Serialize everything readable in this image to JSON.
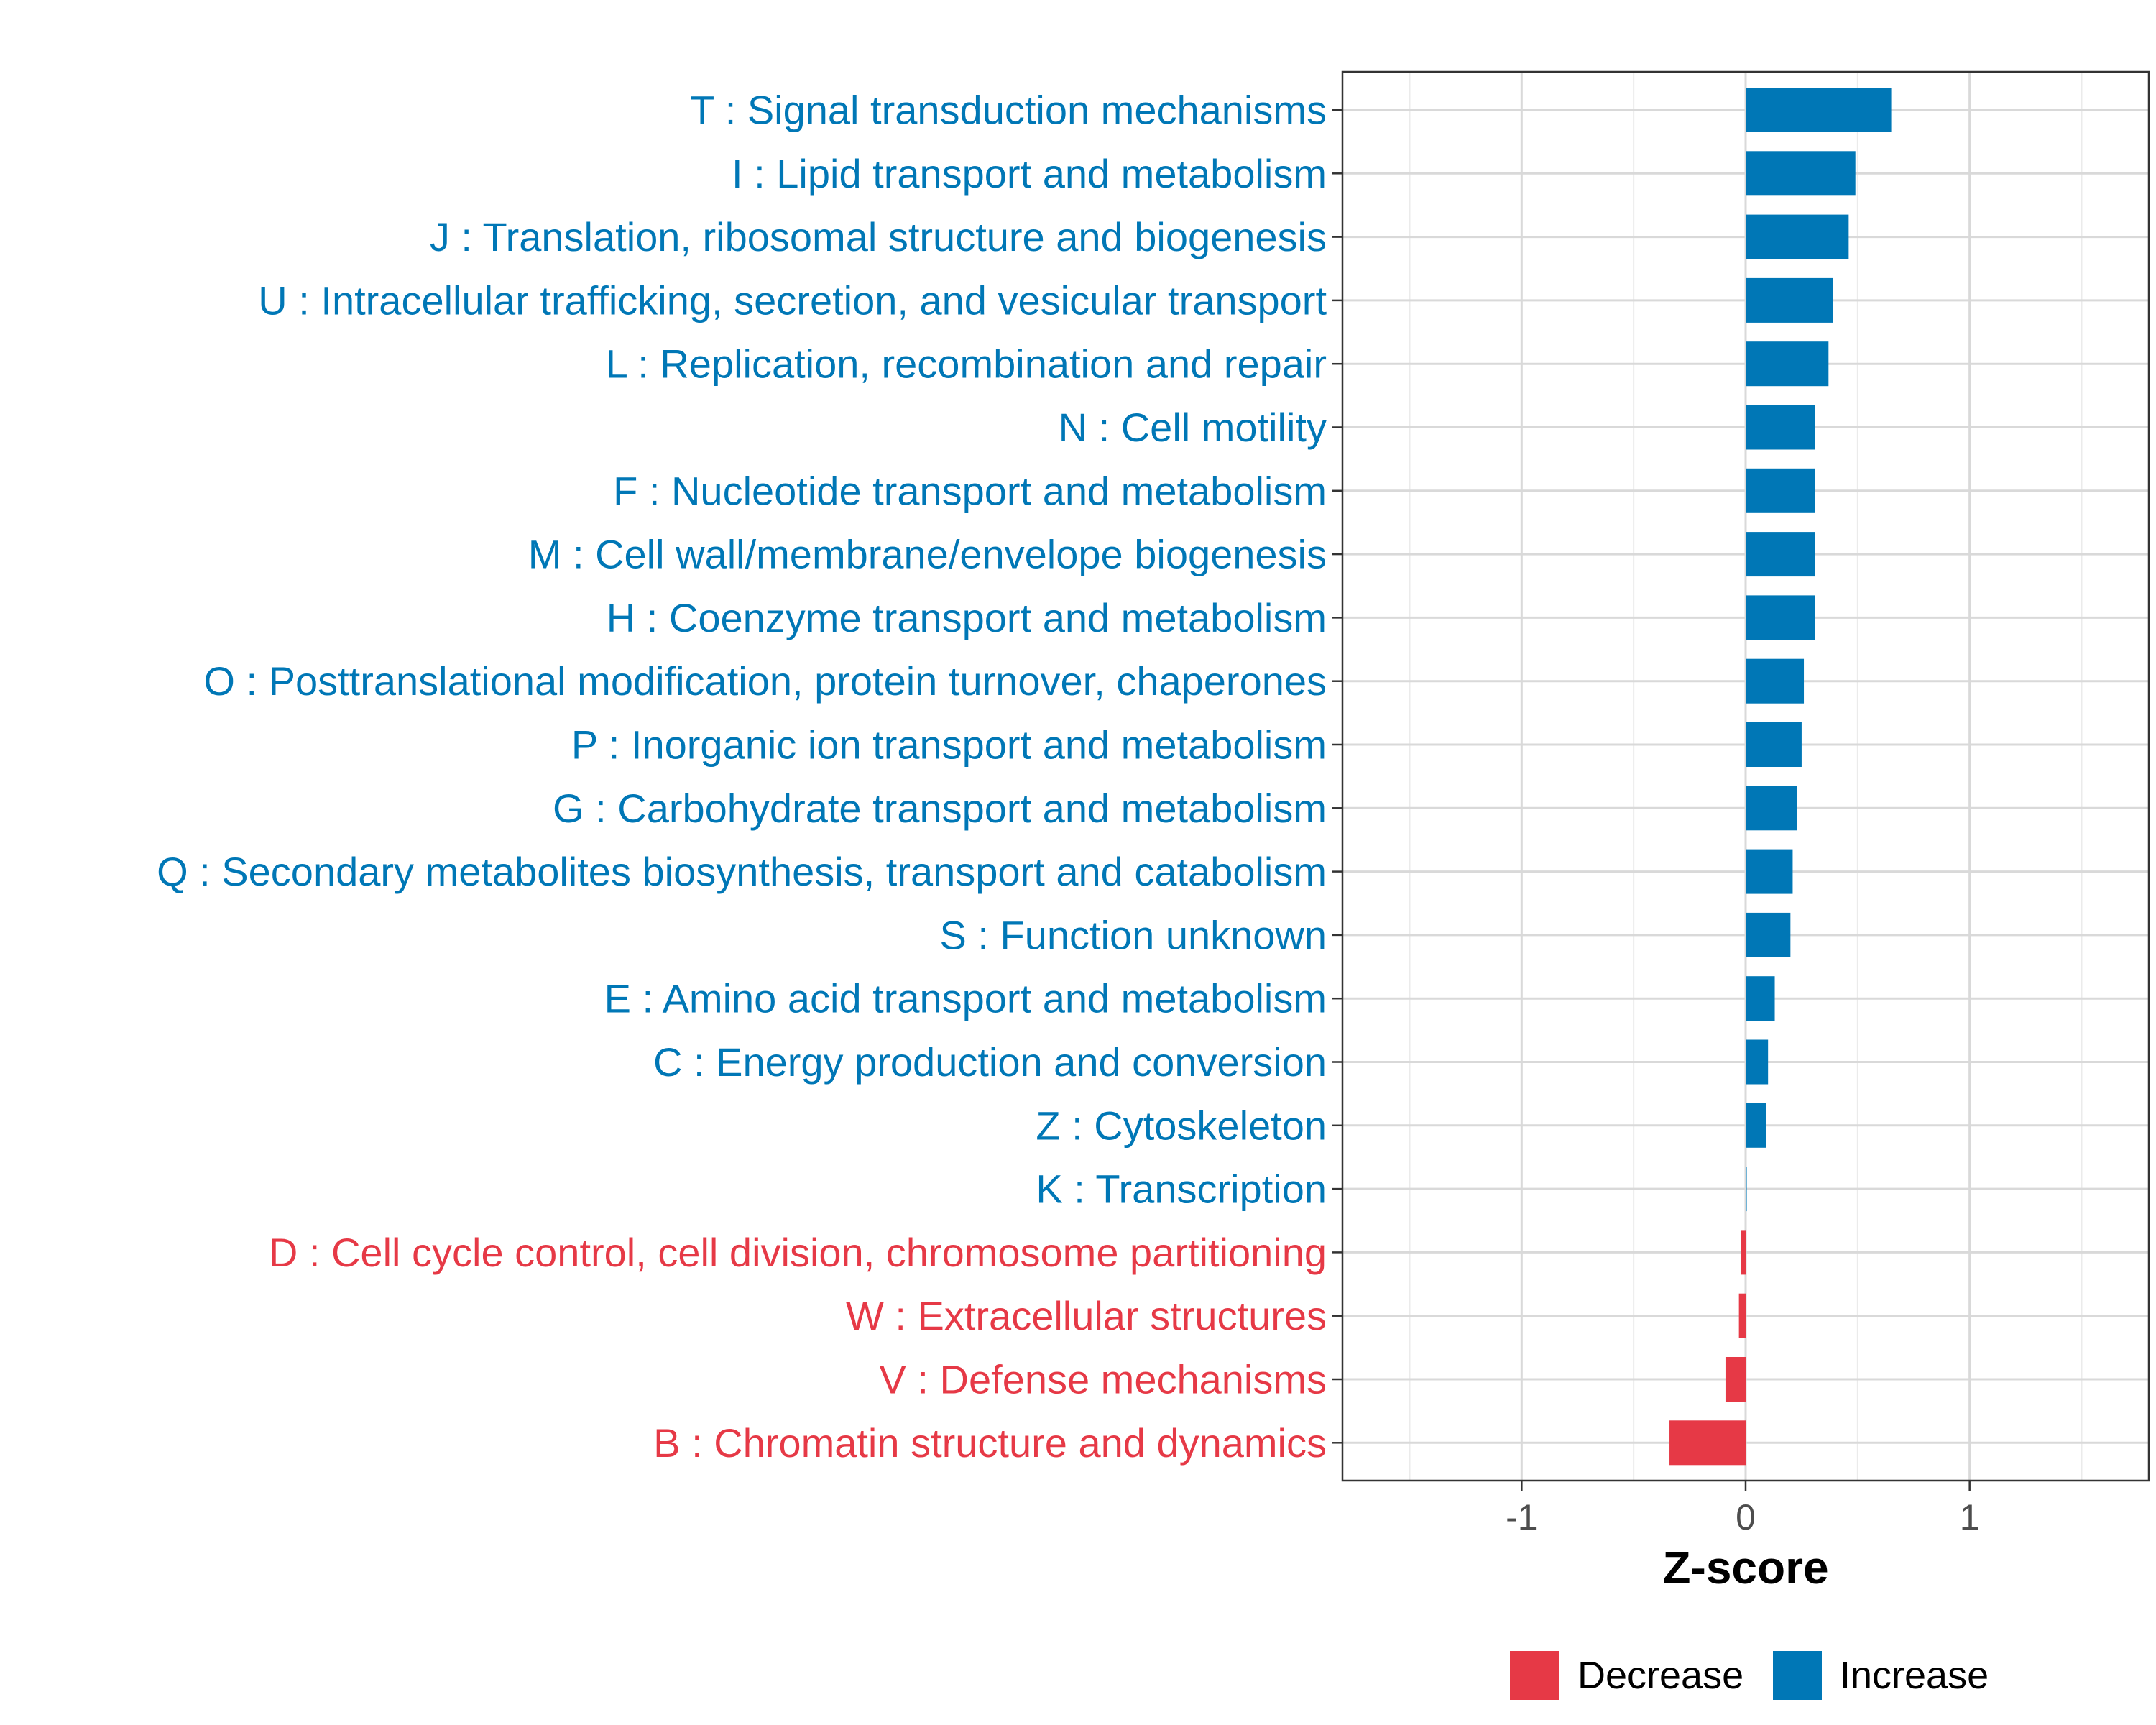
{
  "chart_data": {
    "type": "bar",
    "orientation": "horizontal",
    "title": "",
    "xlabel": "Z-score",
    "ylabel": "",
    "xlim": [
      -1.8,
      1.8
    ],
    "xticks": [
      -1,
      0,
      1
    ],
    "xtick_labels": [
      "-1",
      "0",
      "1"
    ],
    "grid": true,
    "legend_position": "bottom",
    "colors": {
      "Decrease": "#e63946",
      "Increase": "#0077b6"
    },
    "categories": [
      "T : Signal transduction mechanisms",
      "I : Lipid transport and metabolism",
      "J : Translation, ribosomal structure and biogenesis",
      "U : Intracellular trafficking, secretion, and vesicular transport",
      "L : Replication, recombination and repair",
      "N : Cell motility",
      "F : Nucleotide transport and metabolism",
      "M : Cell wall/membrane/envelope biogenesis",
      "H : Coenzyme transport and metabolism",
      "O : Posttranslational modification, protein turnover, chaperones",
      "P : Inorganic ion transport and metabolism",
      "G : Carbohydrate transport and metabolism",
      "Q : Secondary metabolites biosynthesis, transport and catabolism",
      "S : Function unknown",
      "E : Amino acid transport and metabolism",
      "C : Energy production and conversion",
      "Z : Cytoskeleton",
      "K : Transcription",
      "D : Cell cycle control, cell division, chromosome partitioning",
      "W : Extracellular structures",
      "V : Defense mechanisms",
      "B : Chromatin structure and dynamics"
    ],
    "values": [
      0.65,
      0.49,
      0.46,
      0.39,
      0.37,
      0.31,
      0.31,
      0.31,
      0.31,
      0.26,
      0.25,
      0.23,
      0.21,
      0.2,
      0.13,
      0.1,
      0.09,
      0.005,
      -0.02,
      -0.03,
      -0.09,
      -0.34
    ],
    "groups": [
      "Increase",
      "Increase",
      "Increase",
      "Increase",
      "Increase",
      "Increase",
      "Increase",
      "Increase",
      "Increase",
      "Increase",
      "Increase",
      "Increase",
      "Increase",
      "Increase",
      "Increase",
      "Increase",
      "Increase",
      "Increase",
      "Decrease",
      "Decrease",
      "Decrease",
      "Decrease"
    ],
    "legend": [
      "Decrease",
      "Increase"
    ]
  }
}
